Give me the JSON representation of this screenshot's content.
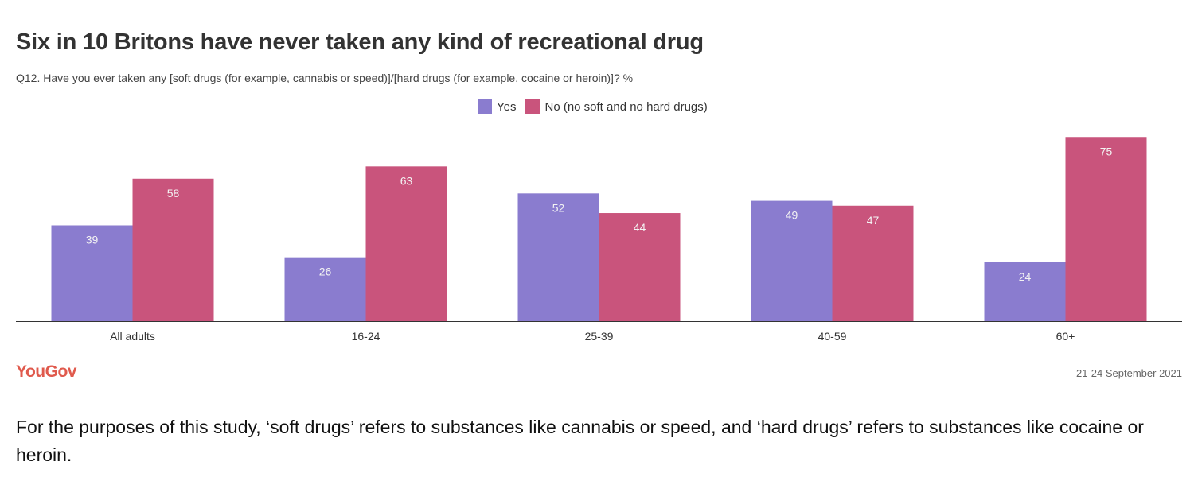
{
  "colors": {
    "yes": "#8a7ccf",
    "no": "#c9547c",
    "brand": "#e05a4d"
  },
  "brand": {
    "logo_text": "YouGov"
  },
  "fieldwork_date": "21-24 September 2021",
  "footnote": "For the purposes of this study, ‘soft drugs’ refers to substances like cannabis or speed, and ‘hard drugs’ refers to substances like cocaine or heroin.",
  "chart_data": {
    "type": "bar",
    "title": "Six in 10 Britons have never taken any kind of recreational drug",
    "subtitle": "Q12. Have you ever taken any [soft drugs (for example, cannabis or speed)]/[hard drugs (for example, cocaine or heroin)]? %",
    "categories": [
      "All adults",
      "16-24",
      "25-39",
      "40-59",
      "60+"
    ],
    "series": [
      {
        "name": "Yes",
        "values": [
          39,
          26,
          52,
          49,
          24
        ]
      },
      {
        "name": "No (no soft and no hard drugs)",
        "values": [
          58,
          63,
          44,
          47,
          75
        ]
      }
    ],
    "ylim": [
      0,
      80
    ],
    "grid": false,
    "legend": "top-center"
  }
}
